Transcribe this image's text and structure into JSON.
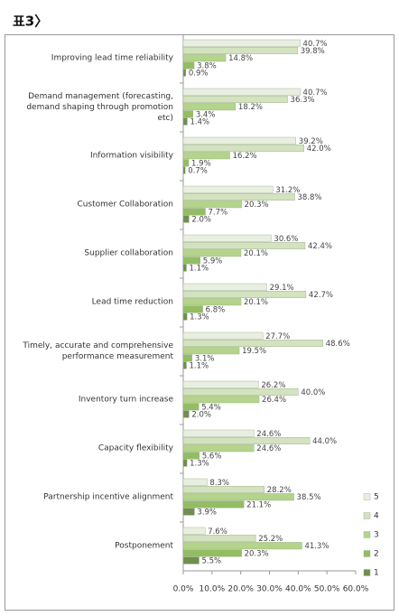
{
  "chart_data": {
    "type": "bar",
    "orientation": "horizontal",
    "title": "표3〉",
    "categories": [
      "Improving lead time reliability",
      "Demand management (forecasting, demand shaping through promotion etc)",
      "Information visibility",
      "Customer Collaboration",
      "Supplier collaboration",
      "Lead time reduction",
      "Timely, accurate and comprehensive performance measurement",
      "Inventory turn increase",
      "Capacity flexibility",
      "Partnership incentive alignment",
      "Postponement"
    ],
    "series": [
      {
        "name": "5",
        "color": "#e9efe0",
        "values": [
          40.7,
          40.7,
          39.2,
          31.2,
          30.6,
          29.1,
          27.7,
          26.2,
          24.6,
          8.3,
          7.6
        ],
        "value_labels": [
          "40.7%",
          "40.7%",
          "39.2%",
          "31.2%",
          "30.6%",
          "29.1%",
          "27.7%",
          "26.2%",
          "24.6%",
          "8.3%",
          "7.6%"
        ]
      },
      {
        "name": "4",
        "color": "#d3e2bf",
        "values": [
          39.8,
          36.3,
          42.0,
          38.8,
          42.4,
          42.7,
          48.6,
          40.0,
          44.0,
          28.2,
          25.2
        ],
        "value_labels": [
          "39.8%",
          "36.3%",
          "42.0%",
          "38.8%",
          "42.4%",
          "42.7%",
          "48.6%",
          "40.0%",
          "44.0%",
          "28.2%",
          "25.2%"
        ]
      },
      {
        "name": "3",
        "color": "#b3d48a",
        "values": [
          14.8,
          18.2,
          16.2,
          20.3,
          20.1,
          20.1,
          19.5,
          26.4,
          24.6,
          38.5,
          41.3
        ],
        "value_labels": [
          "14.8%",
          "18.2%",
          "16.2%",
          "20.3%",
          "20.1%",
          "20.1%",
          "19.5%",
          "26.4%",
          "24.6%",
          "38.5%",
          "41.3%"
        ]
      },
      {
        "name": "2",
        "color": "#93bd63",
        "values": [
          3.8,
          3.4,
          1.9,
          7.7,
          5.9,
          6.8,
          3.1,
          5.4,
          5.6,
          21.1,
          20.3
        ],
        "value_labels": [
          "3.8%",
          "3.4%",
          "1.9%",
          "7.7%",
          "5.9%",
          "6.8%",
          "3.1%",
          "5.4%",
          "5.6%",
          "21.1%",
          "20.3%"
        ]
      },
      {
        "name": "1",
        "color": "#6f8f4c",
        "values": [
          0.9,
          1.4,
          0.7,
          2.0,
          1.1,
          1.3,
          1.1,
          2.0,
          1.3,
          3.9,
          5.5
        ],
        "value_labels": [
          "0.9%",
          "1.4%",
          "0.7%",
          "2.0%",
          "1.1%",
          "1.3%",
          "1.1%",
          "2.0%",
          "1.3%",
          "3.9%",
          "5.5%"
        ]
      }
    ],
    "xlim": [
      0,
      60
    ],
    "xticks": [
      {
        "value": 0,
        "label": "0.0%"
      },
      {
        "value": 10,
        "label": "10.0%"
      },
      {
        "value": 20,
        "label": "20.0%"
      },
      {
        "value": 30,
        "label": "30.0%"
      },
      {
        "value": 40,
        "label": "40.0%"
      },
      {
        "value": 50,
        "label": "50.0%"
      },
      {
        "value": 60,
        "label": "60.0%"
      }
    ],
    "grid": false,
    "legend": "right"
  }
}
